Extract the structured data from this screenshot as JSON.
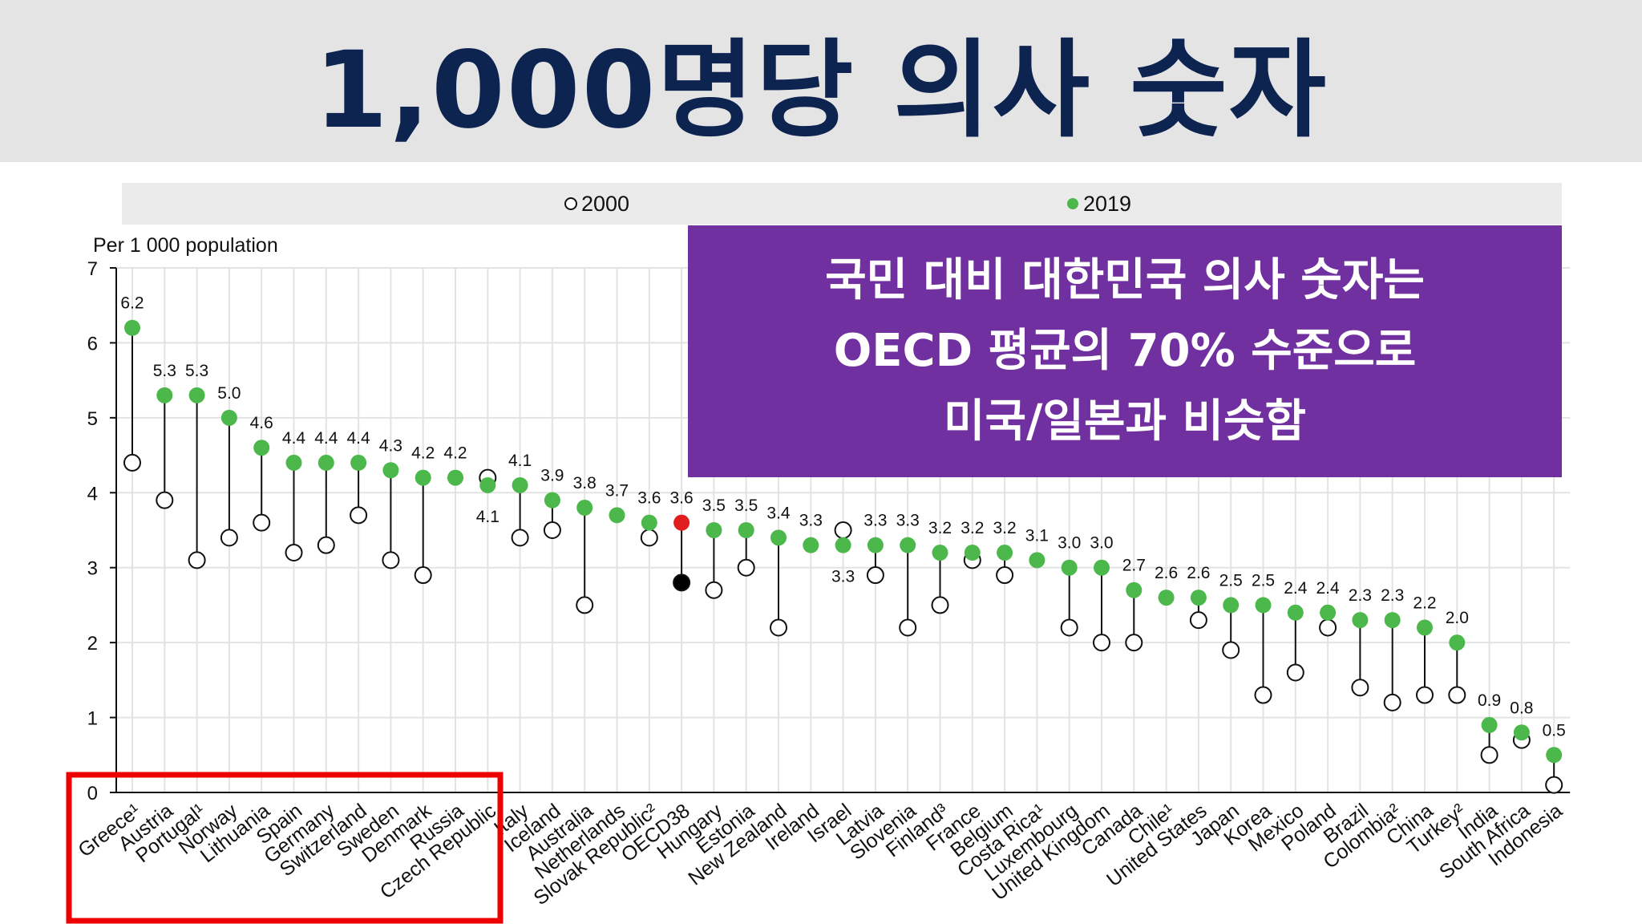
{
  "title": "1,000명당 의사 숫자",
  "callout": {
    "lines": [
      "국민 대비 대한민국 의사 숫자는",
      "OECD 평균의 70% 수준으로",
      "미국/일본과 비슷함"
    ]
  },
  "colors": {
    "title_bg": "#e4e4e4",
    "title_text": "#0d2350",
    "callout_bg": "#7030a0",
    "green": "#4cb84c",
    "oecd_red": "#e01e1e",
    "highlight_box": "#ee0000"
  },
  "chart_data": {
    "type": "scatter",
    "ylabel": "Per 1 000 population",
    "ylim": [
      0,
      7
    ],
    "yticks": [
      0,
      1,
      2,
      3,
      4,
      5,
      6,
      7
    ],
    "legend": [
      "2000",
      "2019"
    ],
    "legend_position": "top",
    "grid": true,
    "categories": [
      "Greece¹",
      "Austria",
      "Portugal¹",
      "Norway",
      "Lithuania",
      "Spain",
      "Germany",
      "Switzerland",
      "Sweden",
      "Denmark",
      "Russia",
      "Czech Republic",
      "Italy",
      "Iceland",
      "Australia",
      "Netherlands",
      "Slovak Republic²",
      "OECD38",
      "Hungary",
      "Estonia",
      "New Zealand",
      "Ireland",
      "Israel",
      "Latvia",
      "Slovenia",
      "Finland³",
      "France",
      "Belgium",
      "Costa Rica¹",
      "Luxembourg",
      "United Kingdom",
      "Canada",
      "Chile¹",
      "United States",
      "Japan",
      "Korea",
      "Mexico",
      "Poland",
      "Brazil",
      "Colombia²",
      "China",
      "Turkey²",
      "India",
      "South Africa",
      "Indonesia"
    ],
    "series": [
      {
        "name": "2000",
        "values": [
          4.4,
          3.9,
          3.1,
          3.4,
          3.6,
          3.2,
          3.3,
          3.7,
          3.1,
          2.9,
          null,
          4.2,
          3.4,
          3.5,
          2.5,
          null,
          3.4,
          2.8,
          2.7,
          3.0,
          2.2,
          null,
          3.5,
          2.9,
          2.2,
          2.5,
          3.1,
          2.9,
          null,
          2.2,
          2.0,
          2.0,
          null,
          2.3,
          1.9,
          1.3,
          1.6,
          2.2,
          1.4,
          1.2,
          1.3,
          1.3,
          0.5,
          0.7,
          0.1
        ]
      },
      {
        "name": "2019",
        "values": [
          6.2,
          5.3,
          5.3,
          5.0,
          4.6,
          4.4,
          4.4,
          4.4,
          4.3,
          4.2,
          4.2,
          4.1,
          4.1,
          3.9,
          3.8,
          3.7,
          3.6,
          3.6,
          3.5,
          3.5,
          3.4,
          3.3,
          3.3,
          3.3,
          3.3,
          3.2,
          3.2,
          3.2,
          3.1,
          3.0,
          3.0,
          2.7,
          2.6,
          2.6,
          2.5,
          2.5,
          2.4,
          2.4,
          2.3,
          2.3,
          2.2,
          2.0,
          0.9,
          0.8,
          0.5
        ]
      }
    ],
    "labels": [
      "6.2",
      "5.3",
      "5.3",
      "5.0",
      "4.6",
      "4.4",
      "4.4",
      "4.4",
      "4.3",
      "4.2",
      "4.2",
      "4.1",
      "4.1",
      "3.9",
      "3.8",
      "3.7",
      "3.6",
      "3.6",
      "3.5",
      "3.5",
      "3.4",
      "3.3",
      "3.3",
      "3.3",
      "3.3",
      "3.2",
      "3.2",
      "3.2",
      "3.1",
      "3.0",
      "3.0",
      "2.7",
      "2.6",
      "2.6",
      "2.5",
      "2.5",
      "2.4",
      "2.4",
      "2.3",
      "2.3",
      "2.2",
      "2.0",
      "0.9",
      "0.8",
      "0.5"
    ],
    "highlight": "OECD38",
    "boxed_categories": [
      "Greece¹",
      "Austria",
      "Portugal¹",
      "Norway",
      "Lithuania",
      "Spain",
      "Germany",
      "Switzerland",
      "Sweden",
      "Denmark",
      "Russia",
      "Czech Republic"
    ]
  }
}
